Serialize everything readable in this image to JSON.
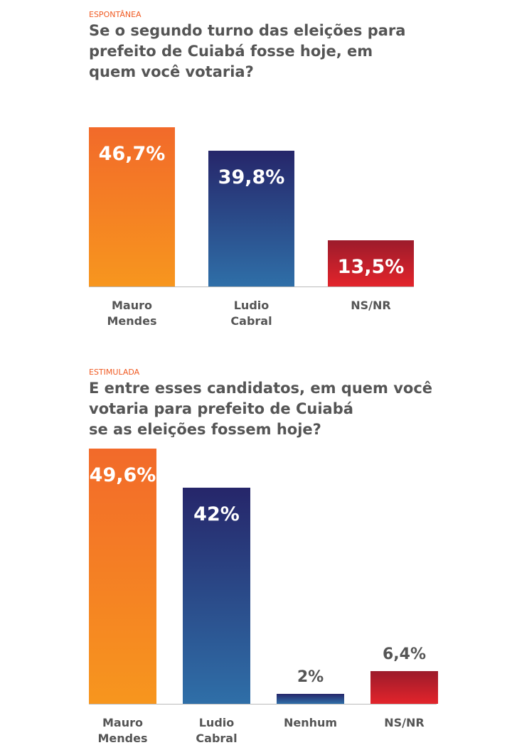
{
  "chart_data": [
    {
      "type": "bar",
      "subtitle": "ESPONTÂNEA",
      "title": "Se o segundo turno das eleições para\nprefeito de Cuiabá fosse hoje, em\nquem você votaria?",
      "categories": [
        "Mauro\nMendes",
        "Ludio\nCabral",
        "NS/NR"
      ],
      "values": [
        46.7,
        39.8,
        13.5
      ],
      "value_labels": [
        "46,7%",
        "39,8%",
        "13,5%"
      ],
      "colors": [
        [
          "#f26a2a",
          "#f7961e"
        ],
        [
          "#26266a",
          "#2f6fa8"
        ],
        [
          "#9c1b2b",
          "#e3242b"
        ]
      ]
    },
    {
      "type": "bar",
      "subtitle": "ESTIMULADA",
      "title": "E entre esses candidatos, em quem você\nvotaria para prefeito de Cuiabá\nse as eleições fossem hoje?",
      "categories": [
        "Mauro\nMendes",
        "Ludio\nCabral",
        "Nenhum",
        "NS/NR"
      ],
      "values": [
        49.6,
        42,
        2,
        6.4
      ],
      "value_labels": [
        "49,6%",
        "42%",
        "2%",
        "6,4%"
      ],
      "colors": [
        [
          "#f26a2a",
          "#f7961e"
        ],
        [
          "#26266a",
          "#2f6fa8"
        ],
        [
          "#26266a",
          "#2f6fa8"
        ],
        [
          "#9c1b2b",
          "#e3242b"
        ]
      ]
    }
  ]
}
